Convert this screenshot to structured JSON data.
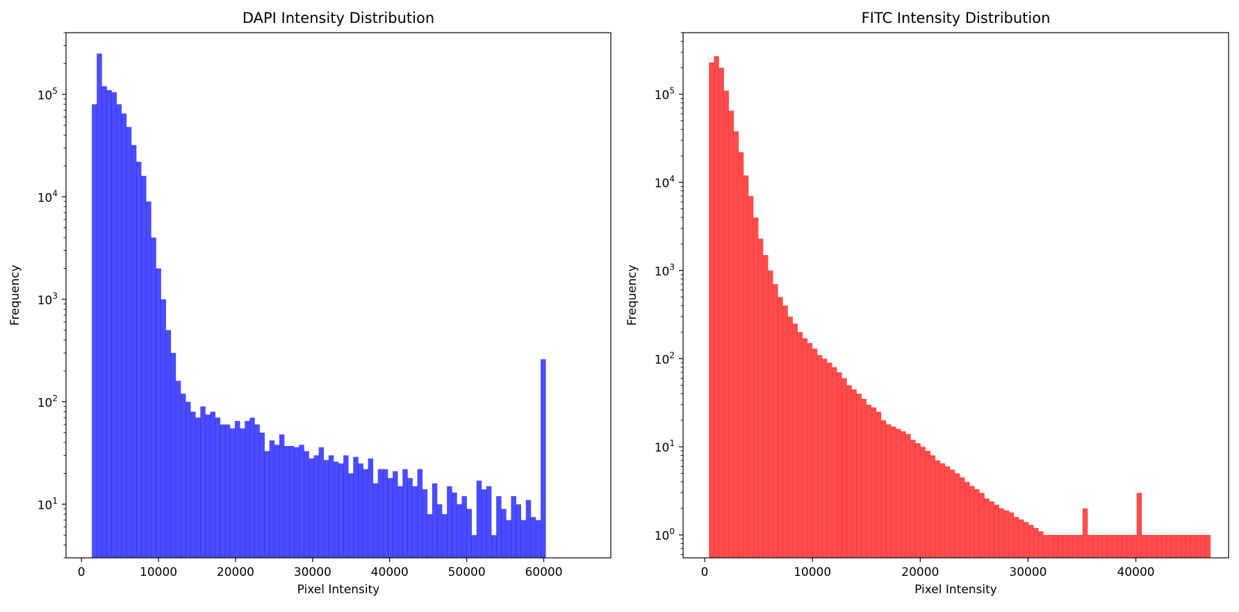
{
  "chart_data": [
    {
      "type": "bar",
      "title": "DAPI Intensity Distribution",
      "xlabel": "Pixel Intensity",
      "ylabel": "Frequency",
      "yscale": "log",
      "color": "#0000ff",
      "alpha": 0.7,
      "xlim": [
        -2000,
        68700
      ],
      "ylim": [
        3,
        400000
      ],
      "xticks": [
        0,
        10000,
        20000,
        30000,
        40000,
        50000,
        60000
      ],
      "yticks": [
        10,
        100,
        1000,
        10000,
        100000
      ],
      "ytick_labels": [
        {
          "base": "10",
          "exp": "1"
        },
        {
          "base": "10",
          "exp": "2"
        },
        {
          "base": "10",
          "exp": "3"
        },
        {
          "base": "10",
          "exp": "4"
        },
        {
          "base": "10",
          "exp": "5"
        }
      ],
      "bin_start": 1350,
      "bin_width": 640,
      "values": [
        80000,
        250000,
        120000,
        110000,
        105000,
        80000,
        65000,
        48000,
        32000,
        22000,
        16000,
        9000,
        4000,
        2000,
        1000,
        500,
        300,
        160,
        120,
        100,
        80,
        70,
        90,
        75,
        80,
        70,
        60,
        60,
        55,
        65,
        55,
        65,
        70,
        60,
        50,
        33,
        42,
        38,
        48,
        37,
        37,
        36,
        38,
        33,
        28,
        30,
        36,
        27,
        30,
        26,
        25,
        30,
        20,
        29,
        25,
        22,
        28,
        16,
        22,
        22,
        18,
        21,
        15,
        22,
        18,
        15,
        22,
        14,
        8,
        16,
        10,
        8,
        15,
        13,
        10,
        12,
        9,
        5,
        17,
        14,
        15,
        5,
        12,
        9,
        7,
        12,
        10,
        7,
        11,
        7.5,
        7,
        260
      ]
    },
    {
      "type": "bar",
      "title": "FITC Intensity Distribution",
      "xlabel": "Pixel Intensity",
      "ylabel": "Frequency",
      "yscale": "log",
      "color": "#ff0000",
      "alpha": 0.7,
      "xlim": [
        -2000,
        48600
      ],
      "ylim": [
        0.55,
        500000
      ],
      "xticks": [
        0,
        10000,
        20000,
        30000,
        40000
      ],
      "yticks": [
        1,
        10,
        100,
        1000,
        10000,
        100000
      ],
      "ytick_labels": [
        {
          "base": "10",
          "exp": "0"
        },
        {
          "base": "10",
          "exp": "1"
        },
        {
          "base": "10",
          "exp": "2"
        },
        {
          "base": "10",
          "exp": "3"
        },
        {
          "base": "10",
          "exp": "4"
        },
        {
          "base": "10",
          "exp": "5"
        }
      ],
      "bin_start": 400,
      "bin_width": 456,
      "values": [
        230000,
        270000,
        200000,
        110000,
        65000,
        38000,
        22000,
        12000,
        7000,
        4000,
        2300,
        1500,
        1000,
        700,
        500,
        400,
        300,
        250,
        200,
        170,
        150,
        130,
        110,
        100,
        90,
        80,
        70,
        60,
        50,
        45,
        40,
        35,
        30,
        28,
        25,
        20,
        18,
        17,
        16,
        15,
        14,
        12,
        11,
        10,
        9,
        8,
        7,
        6.5,
        6,
        5.5,
        5,
        4.5,
        4,
        3.6,
        3.3,
        3,
        2.6,
        2.4,
        2.2,
        2,
        1.9,
        1.8,
        1.6,
        1.5,
        1.4,
        1.3,
        1.2,
        1.1,
        1,
        1,
        1,
        1,
        1,
        1,
        1,
        1,
        2,
        1,
        1,
        1,
        1,
        1,
        1,
        1,
        1,
        1,
        1,
        3,
        1,
        1,
        1,
        1,
        1,
        1,
        1,
        1,
        1,
        1,
        1,
        1,
        1,
        1
      ],
      "note_values": "read from bars"
    }
  ]
}
